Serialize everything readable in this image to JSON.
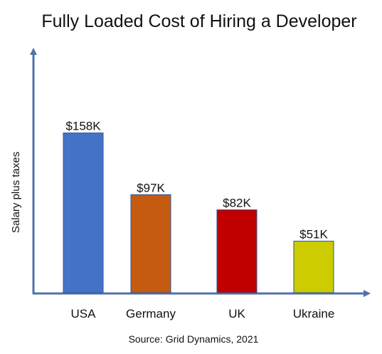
{
  "chart_data": {
    "type": "bar",
    "title": "Fully Loaded Cost of Hiring a Developer",
    "xlabel": "",
    "ylabel": "Salary plus taxes",
    "categories": [
      "USA",
      "Germany",
      "UK",
      "Ukraine"
    ],
    "values": [
      158,
      97,
      82,
      51
    ],
    "value_labels": [
      "$158K",
      "$97K",
      "$82K",
      "$51K"
    ],
    "unit": "$K",
    "ylim": [
      0,
      170
    ],
    "colors": [
      "#4472C4",
      "#C55A11",
      "#C00000",
      "#CCCC00"
    ],
    "axis_color": "#4F72A8",
    "grid": false,
    "legend": "none",
    "source": "Source: Grid Dynamics, 2021"
  }
}
